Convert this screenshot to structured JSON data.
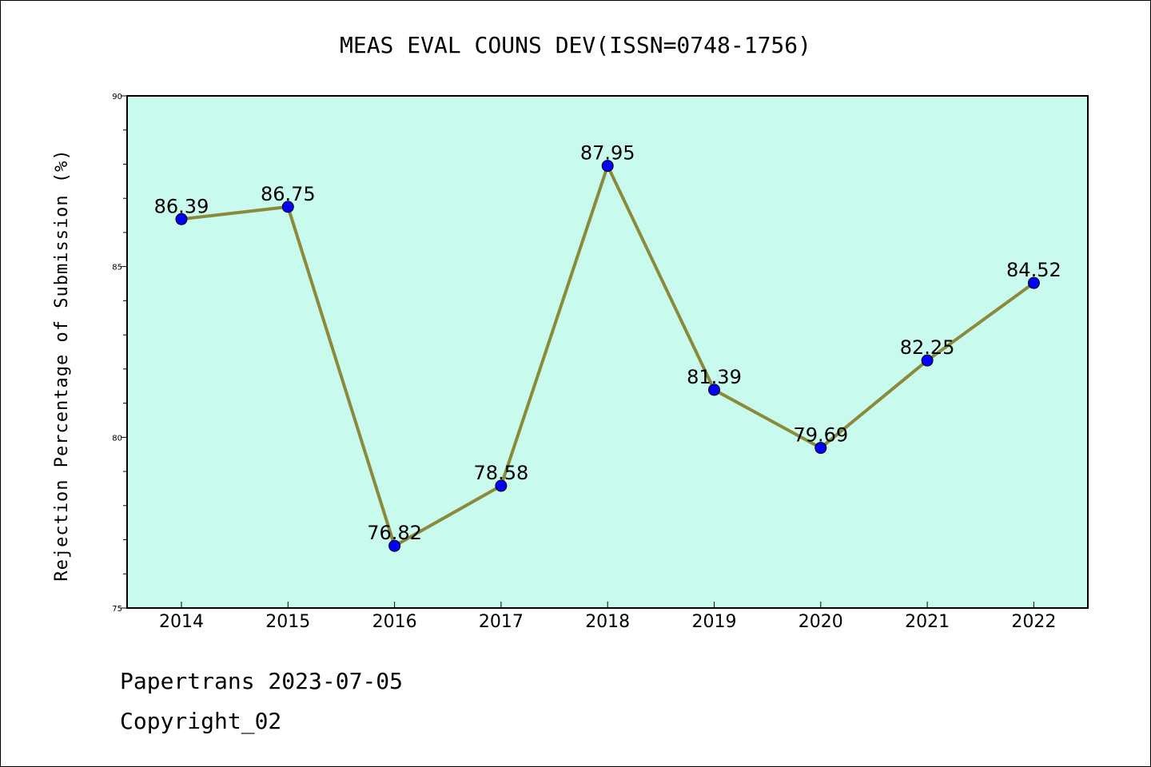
{
  "chart_data": {
    "type": "line",
    "title": "MEAS EVAL COUNS DEV(ISSN=0748-1756)",
    "xlabel": "",
    "ylabel": "Rejection Percentage of Submission (%)",
    "categories": [
      "2014",
      "2015",
      "2016",
      "2017",
      "2018",
      "2019",
      "2020",
      "2021",
      "2022"
    ],
    "series": [
      {
        "values": [
          86.39,
          86.75,
          76.82,
          78.58,
          87.95,
          81.39,
          79.69,
          82.25,
          84.52
        ]
      }
    ],
    "data_labels": [
      "86.39",
      "86.75",
      "76.82",
      "78.58",
      "87.95",
      "81.39",
      "79.69",
      "82.25",
      "84.52"
    ],
    "ylim": [
      75,
      90
    ],
    "yticks": [
      "75",
      "80",
      "85",
      "90"
    ],
    "grid": false,
    "legend": "none",
    "colors": {
      "plot_background": "#c8faee",
      "line": "#8b8a3a",
      "marker": "#0000ff"
    }
  },
  "footer": {
    "line1": "Papertrans 2023-07-05",
    "line2": "Copyright_02"
  }
}
